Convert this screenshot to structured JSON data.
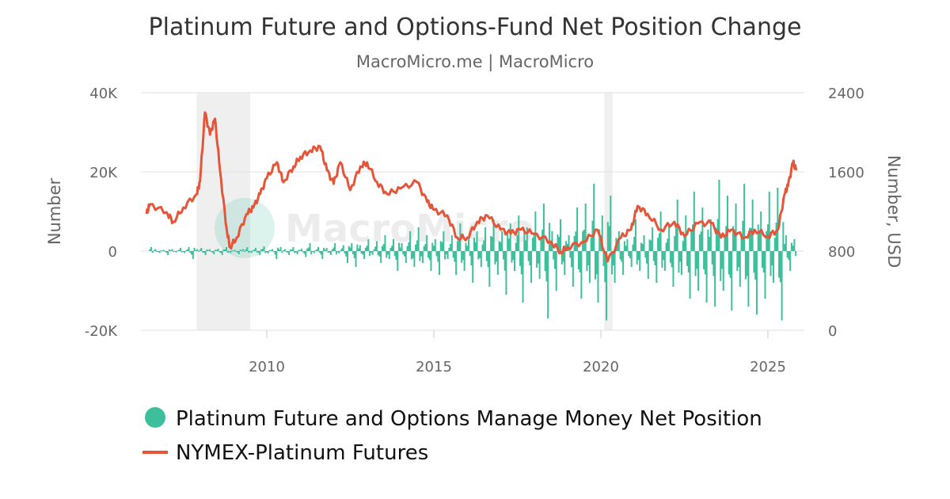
{
  "chart_data": {
    "type": "bar+line",
    "title": "Platinum Future and Options-Fund Net Position Change",
    "subtitle": "MacroMicro.me | MacroMicro",
    "watermark": "MacroMicro",
    "left_axis": {
      "label": "Number",
      "ylim": [
        -20000,
        40000
      ],
      "ticks": [
        "-20K",
        "0",
        "20K",
        "40K"
      ],
      "tick_values": [
        -20000,
        0,
        20000,
        40000
      ]
    },
    "right_axis": {
      "label": "Number, USD",
      "ylim": [
        0,
        2400
      ],
      "ticks": [
        "0",
        "800",
        "1600",
        "2400"
      ],
      "tick_values": [
        0,
        800,
        1600,
        2400
      ]
    },
    "x_axis": {
      "ticks": [
        "2010",
        "2015",
        "2020",
        "2025"
      ],
      "tick_values": [
        2010,
        2015,
        2020,
        2025
      ],
      "xlim": [
        2006.3,
        2026.0
      ]
    },
    "shaded_periods": [
      [
        2007.9,
        2009.5
      ],
      [
        2020.1,
        2020.35
      ]
    ],
    "legend": {
      "placement": "bottom-left",
      "entries": [
        "Platinum Future and Options Manage Money Net Position",
        "NYMEX-Platinum Futures"
      ]
    },
    "series": [
      {
        "name": "Platinum Future and Options Manage Money Net Position",
        "type": "bar",
        "axis": "left",
        "color": "#3dbf9b",
        "unit": "thousands",
        "x_start": 2006.5,
        "x_step": 0.125,
        "values": [
          1,
          0.5,
          -0.5,
          0.3,
          -1,
          0.5,
          -0.3,
          0.8,
          -0.5,
          1,
          -2,
          0.5,
          0.8,
          -1,
          0.5,
          -0.8,
          0.6,
          -1,
          1,
          -0.5,
          0.3,
          -0.8,
          0.5,
          1,
          -0.5,
          0.8,
          -1,
          1.2,
          -0.6,
          0.5,
          -2,
          1,
          0.5,
          -1,
          1,
          -0.8,
          0.6,
          -1.5,
          2,
          -0.5,
          1,
          -2,
          0.8,
          -1,
          2,
          -0.6,
          1.5,
          -3,
          2,
          -4,
          1.5,
          -2,
          3,
          -1,
          2.5,
          -3,
          4,
          -2,
          3,
          -5,
          2,
          -3,
          5,
          -4,
          6,
          -3,
          4,
          -5,
          3,
          -6,
          5,
          -2,
          4,
          -6,
          7,
          -5,
          3,
          -8,
          5,
          -4,
          6,
          -9,
          8,
          -6,
          5,
          -11,
          7,
          -5,
          9,
          -13,
          6,
          -8,
          10,
          -7,
          12,
          -17,
          5,
          -10,
          8,
          -6,
          4,
          -9,
          11,
          -12,
          12,
          -8,
          17,
          -13,
          9,
          -17.5,
          14,
          -8,
          5,
          -6,
          3,
          -4,
          8,
          -5,
          4,
          -7,
          6,
          -8,
          10,
          -5,
          7,
          -9,
          13,
          -6,
          9,
          -12,
          15,
          -10,
          11,
          -13,
          8,
          -14,
          18,
          -10,
          14,
          -15,
          12,
          -9,
          17,
          -14,
          13,
          -16,
          10,
          -12,
          15,
          -8,
          16,
          -17.5,
          4,
          -5,
          3
        ]
      },
      {
        "name": "NYMEX-Platinum Futures",
        "type": "line",
        "axis": "right",
        "color": "#e4553a",
        "unit": "USD",
        "points": [
          [
            2006.4,
            1176
          ],
          [
            2006.5,
            1272
          ],
          [
            2007.0,
            1192
          ],
          [
            2007.2,
            1096
          ],
          [
            2007.5,
            1240
          ],
          [
            2007.9,
            1376
          ],
          [
            2008.0,
            1500
          ],
          [
            2008.15,
            2200
          ],
          [
            2008.3,
            1976
          ],
          [
            2008.45,
            2136
          ],
          [
            2008.6,
            1616
          ],
          [
            2008.8,
            1016
          ],
          [
            2008.9,
            840
          ],
          [
            2009.1,
            936
          ],
          [
            2009.4,
            1176
          ],
          [
            2009.6,
            1240
          ],
          [
            2009.8,
            1376
          ],
          [
            2010.0,
            1536
          ],
          [
            2010.3,
            1696
          ],
          [
            2010.5,
            1496
          ],
          [
            2010.8,
            1656
          ],
          [
            2011.0,
            1752
          ],
          [
            2011.3,
            1816
          ],
          [
            2011.6,
            1856
          ],
          [
            2011.8,
            1616
          ],
          [
            2012.0,
            1480
          ],
          [
            2012.2,
            1696
          ],
          [
            2012.5,
            1416
          ],
          [
            2012.8,
            1656
          ],
          [
            2013.0,
            1696
          ],
          [
            2013.3,
            1496
          ],
          [
            2013.6,
            1376
          ],
          [
            2014.0,
            1432
          ],
          [
            2014.5,
            1496
          ],
          [
            2014.8,
            1296
          ],
          [
            2015.0,
            1216
          ],
          [
            2015.4,
            1160
          ],
          [
            2015.7,
            936
          ],
          [
            2016.0,
            936
          ],
          [
            2016.3,
            1096
          ],
          [
            2016.6,
            1160
          ],
          [
            2017.0,
            1016
          ],
          [
            2017.3,
            976
          ],
          [
            2017.6,
            1016
          ],
          [
            2018.0,
            976
          ],
          [
            2018.5,
            896
          ],
          [
            2018.8,
            792
          ],
          [
            2019.0,
            840
          ],
          [
            2019.5,
            896
          ],
          [
            2019.9,
            1016
          ],
          [
            2020.2,
            696
          ],
          [
            2020.6,
            936
          ],
          [
            2020.9,
            1016
          ],
          [
            2021.1,
            1256
          ],
          [
            2021.4,
            1176
          ],
          [
            2021.8,
            1016
          ],
          [
            2022.2,
            1096
          ],
          [
            2022.5,
            952
          ],
          [
            2022.9,
            1080
          ],
          [
            2023.3,
            1080
          ],
          [
            2023.6,
            936
          ],
          [
            2023.9,
            1016
          ],
          [
            2024.3,
            936
          ],
          [
            2024.6,
            1016
          ],
          [
            2025.0,
            952
          ],
          [
            2025.3,
            1016
          ],
          [
            2025.5,
            1376
          ],
          [
            2025.6,
            1456
          ],
          [
            2025.75,
            1696
          ],
          [
            2025.85,
            1616
          ]
        ]
      }
    ]
  }
}
